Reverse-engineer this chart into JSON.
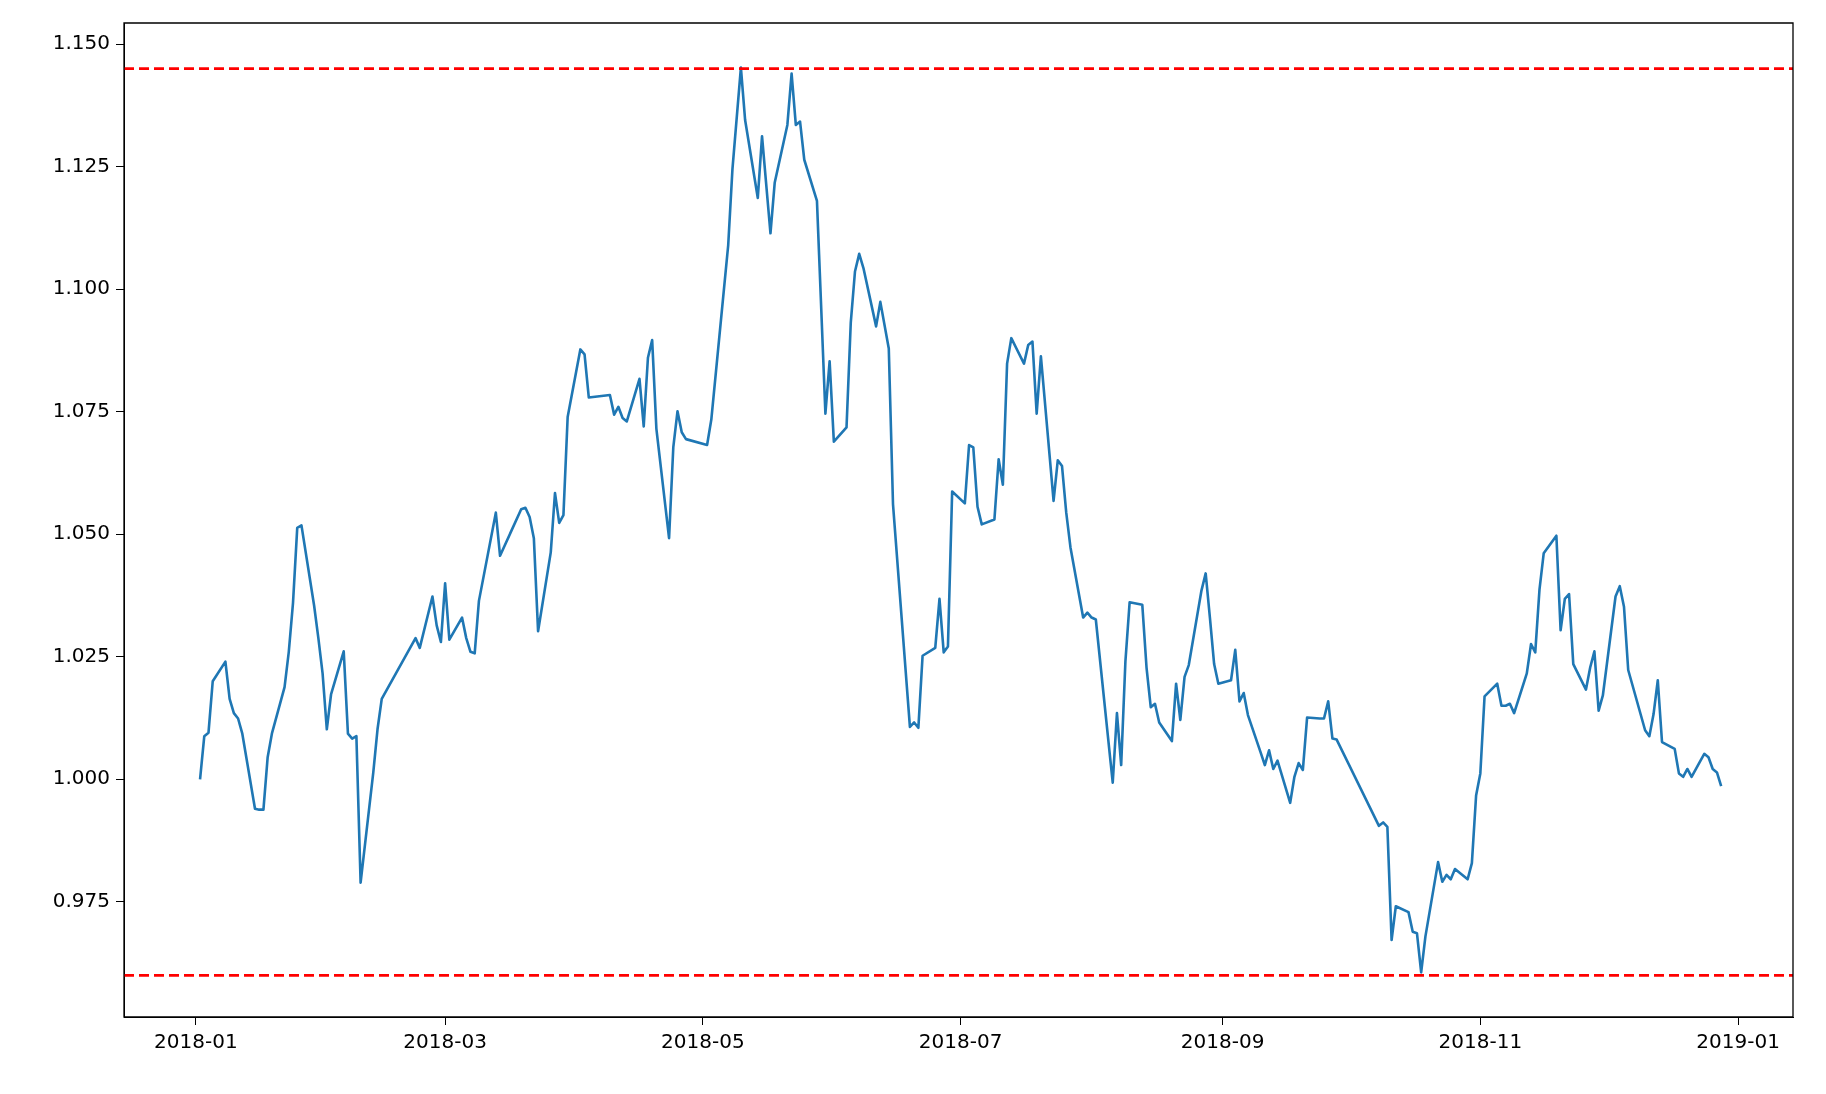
{
  "chart_data": {
    "type": "line",
    "x": [
      "2018-01-02",
      "2018-01-03",
      "2018-01-04",
      "2018-01-05",
      "2018-01-08",
      "2018-01-09",
      "2018-01-10",
      "2018-01-11",
      "2018-01-12",
      "2018-01-15",
      "2018-01-16",
      "2018-01-17",
      "2018-01-18",
      "2018-01-19",
      "2018-01-22",
      "2018-01-23",
      "2018-01-24",
      "2018-01-25",
      "2018-01-26",
      "2018-01-29",
      "2018-01-30",
      "2018-01-31",
      "2018-02-01",
      "2018-02-02",
      "2018-02-05",
      "2018-02-06",
      "2018-02-07",
      "2018-02-08",
      "2018-02-09",
      "2018-02-12",
      "2018-02-13",
      "2018-02-14",
      "2018-02-22",
      "2018-02-23",
      "2018-02-26",
      "2018-02-27",
      "2018-02-28",
      "2018-03-01",
      "2018-03-02",
      "2018-03-05",
      "2018-03-06",
      "2018-03-07",
      "2018-03-08",
      "2018-03-09",
      "2018-03-13",
      "2018-03-14",
      "2018-03-19",
      "2018-03-20",
      "2018-03-21",
      "2018-03-22",
      "2018-03-23",
      "2018-03-26",
      "2018-03-27",
      "2018-03-28",
      "2018-03-29",
      "2018-03-30",
      "2018-04-02",
      "2018-04-03",
      "2018-04-04",
      "2018-04-09",
      "2018-04-10",
      "2018-04-11",
      "2018-04-12",
      "2018-04-13",
      "2018-04-16",
      "2018-04-17",
      "2018-04-18",
      "2018-04-19",
      "2018-04-20",
      "2018-04-23",
      "2018-04-24",
      "2018-04-25",
      "2018-04-26",
      "2018-04-27",
      "2018-05-02",
      "2018-05-03",
      "2018-05-07",
      "2018-05-08",
      "2018-05-10",
      "2018-05-11",
      "2018-05-14",
      "2018-05-15",
      "2018-05-17",
      "2018-05-18",
      "2018-05-21",
      "2018-05-22",
      "2018-05-23",
      "2018-05-24",
      "2018-05-25",
      "2018-05-28",
      "2018-05-30",
      "2018-05-31",
      "2018-06-01",
      "2018-06-04",
      "2018-06-05",
      "2018-06-06",
      "2018-06-07",
      "2018-06-08",
      "2018-06-11",
      "2018-06-12",
      "2018-06-14",
      "2018-06-15",
      "2018-06-19",
      "2018-06-20",
      "2018-06-21",
      "2018-06-22",
      "2018-06-25",
      "2018-06-26",
      "2018-06-27",
      "2018-06-28",
      "2018-06-29",
      "2018-07-02",
      "2018-07-03",
      "2018-07-04",
      "2018-07-05",
      "2018-07-06",
      "2018-07-09",
      "2018-07-10",
      "2018-07-11",
      "2018-07-12",
      "2018-07-13",
      "2018-07-16",
      "2018-07-17",
      "2018-07-18",
      "2018-07-19",
      "2018-07-20",
      "2018-07-23",
      "2018-07-24",
      "2018-07-25",
      "2018-07-26",
      "2018-07-27",
      "2018-07-30",
      "2018-07-31",
      "2018-08-01",
      "2018-08-02",
      "2018-08-06",
      "2018-08-07",
      "2018-08-08",
      "2018-08-09",
      "2018-08-10",
      "2018-08-13",
      "2018-08-14",
      "2018-08-15",
      "2018-08-16",
      "2018-08-17",
      "2018-08-20",
      "2018-08-21",
      "2018-08-22",
      "2018-08-23",
      "2018-08-24",
      "2018-08-27",
      "2018-08-28",
      "2018-08-29",
      "2018-08-30",
      "2018-08-31",
      "2018-09-03",
      "2018-09-04",
      "2018-09-05",
      "2018-09-06",
      "2018-09-07",
      "2018-09-10",
      "2018-09-11",
      "2018-09-12",
      "2018-09-13",
      "2018-09-14",
      "2018-09-17",
      "2018-09-18",
      "2018-09-19",
      "2018-09-20",
      "2018-09-21",
      "2018-09-24",
      "2018-09-25",
      "2018-09-26",
      "2018-09-27",
      "2018-09-28",
      "2018-10-08",
      "2018-10-09",
      "2018-10-10",
      "2018-10-11",
      "2018-10-12",
      "2018-10-15",
      "2018-10-16",
      "2018-10-17",
      "2018-10-18",
      "2018-10-19",
      "2018-10-22",
      "2018-10-23",
      "2018-10-24",
      "2018-10-25",
      "2018-10-26",
      "2018-10-29",
      "2018-10-30",
      "2018-10-31",
      "2018-11-01",
      "2018-11-02",
      "2018-11-05",
      "2018-11-06",
      "2018-11-07",
      "2018-11-08",
      "2018-11-09",
      "2018-11-12",
      "2018-11-13",
      "2018-11-14",
      "2018-11-15",
      "2018-11-16",
      "2018-11-19",
      "2018-11-20",
      "2018-11-21",
      "2018-11-22",
      "2018-11-23",
      "2018-11-26",
      "2018-11-27",
      "2018-11-28",
      "2018-11-29",
      "2018-11-30",
      "2018-12-03",
      "2018-12-04",
      "2018-12-05",
      "2018-12-06",
      "2018-12-10",
      "2018-12-11",
      "2018-12-12",
      "2018-12-13",
      "2018-12-14",
      "2018-12-17",
      "2018-12-18",
      "2018-12-19",
      "2018-12-20",
      "2018-12-21",
      "2018-12-24",
      "2018-12-25",
      "2018-12-26",
      "2018-12-27",
      "2018-12-28"
    ],
    "series": [
      {
        "color": "#1f77b4",
        "values": [
          1.0,
          1.0088,
          1.0095,
          1.02,
          1.024,
          1.0164,
          1.0135,
          1.0124,
          1.0093,
          0.994,
          0.9938,
          0.9938,
          1.0045,
          1.0093,
          1.0188,
          1.026,
          1.036,
          1.0513,
          1.0518,
          1.0354,
          1.0288,
          1.0216,
          1.0102,
          1.0173,
          1.0261,
          1.0093,
          1.0083,
          1.0088,
          0.9789,
          1.0014,
          1.0102,
          1.0164,
          1.0288,
          1.0268,
          1.0373,
          1.0314,
          1.028,
          1.04,
          1.0285,
          1.033,
          1.0288,
          1.026,
          1.0257,
          1.0364,
          1.0544,
          1.0456,
          1.0551,
          1.0554,
          1.0535,
          1.0492,
          1.0302,
          1.0463,
          1.0584,
          1.0523,
          1.0539,
          1.0739,
          1.0877,
          1.0867,
          1.0779,
          1.0784,
          1.0744,
          1.076,
          1.0737,
          1.073,
          1.0817,
          1.072,
          1.086,
          1.0896,
          1.0715,
          1.0492,
          1.0677,
          1.0751,
          1.0708,
          1.0694,
          1.0682,
          1.0734,
          1.109,
          1.1245,
          1.1452,
          1.1345,
          1.1186,
          1.1312,
          1.1114,
          1.1217,
          1.1335,
          1.144,
          1.1335,
          1.1342,
          1.1264,
          1.118,
          1.0746,
          1.0853,
          1.0689,
          1.0718,
          1.0931,
          1.1036,
          1.1072,
          1.1043,
          1.0924,
          1.0974,
          1.0879,
          1.0561,
          1.0107,
          1.0116,
          1.0105,
          1.0252,
          1.0268,
          1.0368,
          1.0259,
          1.0271,
          1.0587,
          1.0563,
          1.0682,
          1.0677,
          1.0556,
          1.052,
          1.053,
          1.0653,
          1.0601,
          1.0848,
          1.09,
          1.0848,
          1.0886,
          1.0893,
          1.0746,
          1.0863,
          1.0568,
          1.0651,
          1.0639,
          1.0544,
          1.0473,
          1.033,
          1.034,
          1.033,
          1.0326,
          0.9993,
          1.0135,
          1.0029,
          1.024,
          1.0361,
          1.0356,
          1.0228,
          1.0147,
          1.0154,
          1.0116,
          1.0078,
          1.0195,
          1.0121,
          1.0209,
          1.0233,
          1.0385,
          1.042,
          1.033,
          1.0235,
          1.0195,
          1.0202,
          1.0264,
          1.0159,
          1.0176,
          1.0131,
          1.0055,
          1.0029,
          1.0059,
          1.0021,
          1.0038,
          0.9952,
          1.0005,
          1.0033,
          1.0019,
          1.0126,
          1.0124,
          1.0124,
          1.0159,
          1.0083,
          1.0081,
          0.9905,
          0.9912,
          0.9903,
          0.9672,
          0.9741,
          0.9729,
          0.9689,
          0.9686,
          0.9606,
          0.9679,
          0.9831,
          0.9791,
          0.9805,
          0.9796,
          0.9817,
          0.9796,
          0.9829,
          0.9967,
          1.0012,
          1.0169,
          1.0195,
          1.015,
          1.015,
          1.0154,
          1.0135,
          1.0216,
          1.0276,
          1.0259,
          1.0387,
          1.0461,
          1.0497,
          1.0304,
          1.0368,
          1.0378,
          1.0235,
          1.0183,
          1.0228,
          1.0261,
          1.014,
          1.0171,
          1.0373,
          1.0394,
          1.0352,
          1.0223,
          1.01,
          1.0088,
          1.0133,
          1.0202,
          1.0076,
          1.0062,
          1.0012,
          1.0005,
          1.0021,
          1.0005,
          1.0052,
          1.0045,
          1.0021,
          1.0014,
          0.9986
        ]
      }
    ],
    "xlim": [
      "2017-12-15",
      "2019-01-14"
    ],
    "xticks": [
      "2018-01",
      "2018-03",
      "2018-05",
      "2018-07",
      "2018-09",
      "2018-11",
      "2019-01"
    ],
    "ylim": [
      0.9515,
      1.1543
    ],
    "yticks": [
      {
        "value": 0.975,
        "label": "0.975"
      },
      {
        "value": 1,
        "label": "1.000"
      },
      {
        "value": 1.025,
        "label": "1.025"
      },
      {
        "value": 1.05,
        "label": "1.050"
      },
      {
        "value": 1.075,
        "label": "1.075"
      },
      {
        "value": 1.1,
        "label": "1.100"
      },
      {
        "value": 1.125,
        "label": "1.125"
      },
      {
        "value": 1.15,
        "label": "1.150"
      }
    ],
    "ref_lines": [
      {
        "axis": "y",
        "value": 1.145,
        "color": "#ff0000",
        "line_style": "dashed"
      },
      {
        "axis": "y",
        "value": 0.96,
        "color": "#ff0000",
        "line_style": "dashed"
      }
    ],
    "grid": false,
    "legend": false,
    "marker": "none",
    "line_style": "solid"
  }
}
